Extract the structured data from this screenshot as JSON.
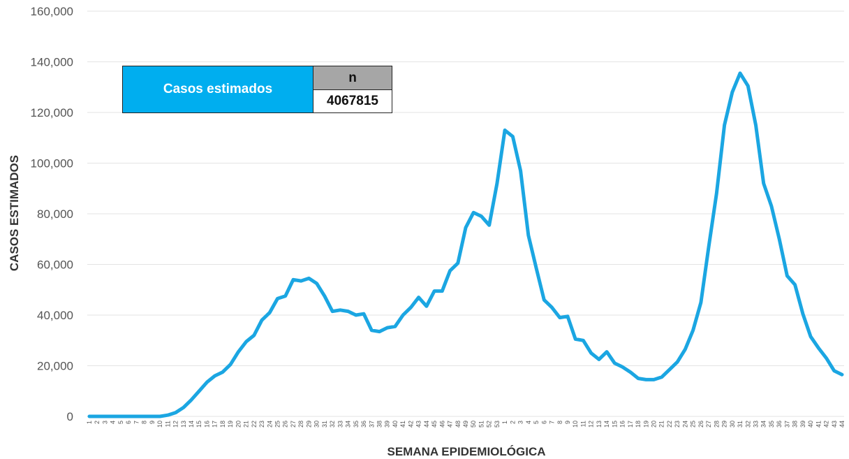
{
  "chart_data": {
    "type": "line",
    "xlabel": "SEMANA EPIDEMIOLÓGICA",
    "ylabel": "CASOS ESTIMADOS",
    "ylim": [
      0,
      160000
    ],
    "yticks": [
      0,
      20000,
      40000,
      60000,
      80000,
      100000,
      120000,
      140000,
      160000
    ],
    "ytick_labels": [
      "0",
      "20,000",
      "40,000",
      "60,000",
      "80,000",
      "100,000",
      "120,000",
      "140,000",
      "160,000"
    ],
    "grid": true,
    "line_color": "#1ba6e2",
    "x": [
      "1",
      "2",
      "3",
      "4",
      "5",
      "6",
      "7",
      "8",
      "9",
      "10",
      "11",
      "12",
      "13",
      "14",
      "15",
      "16",
      "17",
      "18",
      "19",
      "20",
      "21",
      "22",
      "23",
      "24",
      "25",
      "26",
      "27",
      "28",
      "29",
      "30",
      "31",
      "32",
      "33",
      "34",
      "35",
      "36",
      "37",
      "38",
      "39",
      "40",
      "41",
      "42",
      "43",
      "44",
      "45",
      "46",
      "47",
      "48",
      "49",
      "50",
      "51",
      "52",
      "53",
      "1",
      "2",
      "3",
      "4",
      "5",
      "6",
      "7",
      "8",
      "9",
      "10",
      "11",
      "12",
      "13",
      "14",
      "15",
      "16",
      "17",
      "18",
      "19",
      "20",
      "21",
      "22",
      "23",
      "24",
      "25",
      "26",
      "27",
      "28",
      "29",
      "30",
      "31",
      "32",
      "33",
      "34",
      "35",
      "36",
      "37",
      "38",
      "39",
      "40",
      "41",
      "42",
      "43",
      "44"
    ],
    "series": [
      {
        "values": [
          0,
          0,
          0,
          0,
          0,
          0,
          0,
          0,
          0,
          0,
          500,
          1500,
          3500,
          6500,
          10000,
          13500,
          16000,
          17500,
          20500,
          25500,
          29500,
          32000,
          38000,
          41000,
          46500,
          47500,
          54000,
          53500,
          54500,
          52500,
          47500,
          41500,
          42000,
          41500,
          40000,
          40500,
          34000,
          33500,
          35000,
          35500,
          40000,
          43000,
          47000,
          43500,
          49500,
          49500,
          57500,
          60500,
          74500,
          80500,
          79000,
          75500,
          92000,
          113000,
          110500,
          97000,
          71500,
          58500,
          46000,
          43000,
          39000,
          39500,
          30500,
          30000,
          25000,
          22500,
          25500,
          21000,
          19500,
          17500,
          15000,
          14500,
          14500,
          15500,
          18500,
          21500,
          26500,
          34000,
          45000,
          67000,
          88000,
          115000,
          128000,
          135500,
          130500,
          115000,
          92000,
          83000,
          70000,
          55500,
          52000,
          40500,
          31500,
          27000,
          23000,
          18000,
          16500
        ]
      }
    ]
  },
  "legend_table": {
    "label": "Casos estimados",
    "header": "n",
    "value": "4067815"
  }
}
